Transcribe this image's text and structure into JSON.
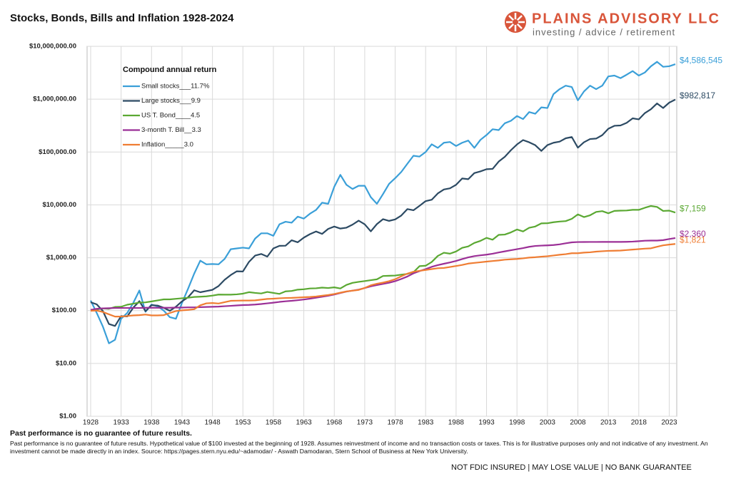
{
  "header": {
    "brand": "PLAINS ADVISORY LLC",
    "tagline": "investing / advice / retirement"
  },
  "footer": {
    "headline": "Past performance is no guarantee of future results.",
    "note": "Past performance is no guarantee of future results. Hypothetical value of $100 invested at the beginning of 1928. Assumes reinvestment of income and no transaction costs or taxes. This is for illustrative purposes only and not indicative of any investment. An investment cannot be made directly in an index. Source: https://pages.stern.nyu.edu/~adamodar/ - Aswath Damodaran, Stern School of Business at New York University.",
    "disclaimer": "NOT FDIC INSURED | MAY LOSE VALUE | NO BANK GUARANTEE"
  },
  "chart_data": {
    "type": "line",
    "title": "Stocks, Bonds, Bills and Inflation 1928-2024",
    "legend_title": "Compound annual return",
    "log_scale": true,
    "grid": true,
    "legend": "upper left",
    "x": [
      1928,
      1929,
      1930,
      1931,
      1932,
      1933,
      1934,
      1935,
      1936,
      1937,
      1938,
      1939,
      1940,
      1941,
      1942,
      1943,
      1944,
      1945,
      1946,
      1947,
      1948,
      1949,
      1950,
      1951,
      1952,
      1953,
      1954,
      1955,
      1956,
      1957,
      1958,
      1959,
      1960,
      1961,
      1962,
      1963,
      1964,
      1965,
      1966,
      1967,
      1968,
      1969,
      1970,
      1971,
      1972,
      1973,
      1974,
      1975,
      1976,
      1977,
      1978,
      1979,
      1980,
      1981,
      1982,
      1983,
      1984,
      1985,
      1986,
      1987,
      1988,
      1989,
      1990,
      1991,
      1992,
      1993,
      1994,
      1995,
      1996,
      1997,
      1998,
      1999,
      2000,
      2001,
      2002,
      2003,
      2004,
      2005,
      2006,
      2007,
      2008,
      2009,
      2010,
      2011,
      2012,
      2013,
      2014,
      2015,
      2016,
      2017,
      2018,
      2019,
      2020,
      2021,
      2022,
      2023,
      2024
    ],
    "xlim": [
      1928,
      2024
    ],
    "xticks": [
      1928,
      1933,
      1938,
      1943,
      1948,
      1953,
      1958,
      1963,
      1968,
      1973,
      1978,
      1983,
      1988,
      1993,
      1998,
      2003,
      2008,
      2013,
      2018,
      2023
    ],
    "ylim": [
      1,
      10000000
    ],
    "yticks": [
      {
        "value": 1,
        "label": "$1.00"
      },
      {
        "value": 10,
        "label": "$10.00"
      },
      {
        "value": 100,
        "label": "$100.00"
      },
      {
        "value": 1000,
        "label": "$1,000.00"
      },
      {
        "value": 10000,
        "label": "$10,000.00"
      },
      {
        "value": 100000,
        "label": "$100,000.00"
      },
      {
        "value": 1000000,
        "label": "$1,000,000.00"
      },
      {
        "value": 10000000,
        "label": "$10,000,000.00"
      }
    ],
    "series": [
      {
        "name": "Small stocks___11.7%",
        "color": "#3a9fd8",
        "end_label": "$4,586,545",
        "values": [
          155,
          90,
          50,
          24,
          28,
          70,
          90,
          140,
          240,
          95,
          130,
          120,
          100,
          75,
          70,
          140,
          260,
          500,
          880,
          750,
          760,
          750,
          950,
          1450,
          1500,
          1550,
          1500,
          2300,
          2900,
          2900,
          2600,
          4300,
          4800,
          4600,
          6000,
          5500,
          6800,
          8000,
          11000,
          10500,
          22000,
          37000,
          24000,
          20000,
          23000,
          23000,
          14000,
          10500,
          16000,
          25000,
          32000,
          42000,
          60000,
          85000,
          82000,
          100000,
          140000,
          120000,
          150000,
          155000,
          130000,
          150000,
          165000,
          120000,
          170000,
          210000,
          270000,
          260000,
          350000,
          390000,
          480000,
          420000,
          570000,
          530000,
          700000,
          680000,
          1250000,
          1550000,
          1800000,
          1700000,
          950000,
          1400000,
          1800000,
          1550000,
          1800000,
          2700000,
          2800000,
          2500000,
          2900000,
          3400000,
          2800000,
          3200000,
          4200000,
          5100000,
          4100000,
          4200000,
          4586545
        ]
      },
      {
        "name": "Large stocks___9.9",
        "color": "#2c4a63",
        "end_label": "$982,817",
        "values": [
          143.8,
          131.1,
          98.4,
          55.7,
          51.2,
          78.6,
          77.4,
          113.6,
          151,
          97.3,
          126.9,
          124.4,
          112.8,
          99,
          118.3,
          149.6,
          178.9,
          242,
          222.2,
          234.1,
          246.9,
          291.3,
          382.2,
          470.7,
          553.9,
          549.7,
          836,
          1096,
          1179,
          1050,
          1500,
          1680,
          1688,
          2141,
          1959,
          2401,
          2794,
          3143,
          2829,
          3508,
          3891,
          3564,
          3704,
          4233,
          5036,
          4292,
          3157,
          4332,
          5365,
          4980,
          5305,
          6283,
          8320,
          7913,
          9610,
          11776,
          12514,
          16477,
          19552,
          20580,
          23997,
          31603,
          30618,
          39949,
          42994,
          47324,
          47948,
          65963,
          81109,
          108160,
          139071,
          168342,
          153017,
          134834,
          105038,
          135170,
          149884,
          157250,
          182093,
          192098,
          121004,
          153024,
          176070,
          179776,
          208556,
          276096,
          313898,
          318232,
          356296,
          434065,
          415042,
          545710,
          646143,
          831620,
          681039,
          859990,
          982817
        ]
      },
      {
        "name": "US T. Bond____4.5",
        "color": "#5aa832",
        "end_label": "$7,159",
        "values": [
          101,
          105,
          110,
          108,
          117,
          118,
          129,
          135,
          142,
          143,
          149,
          156,
          163,
          163,
          167,
          171,
          175,
          181,
          183,
          186,
          192,
          201,
          200,
          200,
          203,
          209,
          223,
          216,
          211,
          225,
          216,
          207,
          231,
          235,
          249,
          253,
          262,
          264,
          272,
          267,
          275,
          262,
          306,
          335,
          349,
          362,
          376,
          390,
          451,
          456,
          460,
          478,
          493,
          532,
          693,
          706,
          830,
          1080,
          1243,
          1193,
          1313,
          1537,
          1637,
          1903,
          2086,
          2377,
          2194,
          2707,
          2745,
          3014,
          3422,
          3148,
          3687,
          3897,
          4472,
          4490,
          4700,
          4836,
          4931,
          5445,
          6612,
          5876,
          6357,
          7361,
          7618,
          6942,
          7685,
          7783,
          7833,
          8053,
          8053,
          8815,
          9529,
          9152,
          7680,
          7786,
          7159
        ]
      },
      {
        "name": "3-month T. Bill__3.3",
        "color": "#9b2f96",
        "end_label": "$2,360",
        "values": [
          103,
          108,
          110,
          111,
          112,
          112,
          112,
          112,
          112,
          113,
          113,
          113,
          113,
          113,
          114,
          114,
          115,
          115,
          116,
          117,
          118,
          119,
          121,
          123,
          125,
          127,
          128,
          130,
          133,
          137,
          141,
          146,
          150,
          153,
          157,
          162,
          168,
          175,
          183,
          191,
          201,
          215,
          229,
          239,
          249,
          267,
          288,
          304,
          320,
          336,
          360,
          396,
          441,
          506,
          559,
          609,
          672,
          725,
          770,
          815,
          870,
          943,
          1017,
          1073,
          1111,
          1144,
          1191,
          1258,
          1321,
          1387,
          1453,
          1521,
          1610,
          1670,
          1697,
          1714,
          1738,
          1791,
          1876,
          1954,
          1982,
          1985,
          1987,
          1988,
          1990,
          1991,
          1992,
          1993,
          2000,
          2018,
          2056,
          2098,
          2111,
          2112,
          2154,
          2260,
          2360
        ]
      },
      {
        "name": "Inflation_____3.0",
        "color": "#ef7d33",
        "end_label": "$1,821",
        "values": [
          99,
          100,
          94,
          85,
          77,
          77,
          79,
          81,
          82,
          84,
          81,
          81,
          82,
          90,
          98,
          101,
          103,
          106,
          126,
          137,
          139,
          136,
          144,
          153,
          154,
          155,
          155,
          156,
          161,
          166,
          168,
          171,
          173,
          174,
          176,
          179,
          181,
          185,
          191,
          197,
          206,
          218,
          230,
          238,
          246,
          268,
          301,
          322,
          338,
          360,
          392,
          445,
          500,
          544,
          565,
          587,
          610,
          633,
          640,
          668,
          698,
          730,
          775,
          798,
          821,
          844,
          866,
          888,
          918,
          934,
          949,
          974,
          1007,
          1023,
          1048,
          1067,
          1102,
          1140,
          1168,
          1216,
          1217,
          1250,
          1268,
          1306,
          1328,
          1348,
          1358,
          1368,
          1397,
          1427,
          1454,
          1487,
          1507,
          1614,
          1717,
          1774,
          1821
        ]
      }
    ]
  }
}
